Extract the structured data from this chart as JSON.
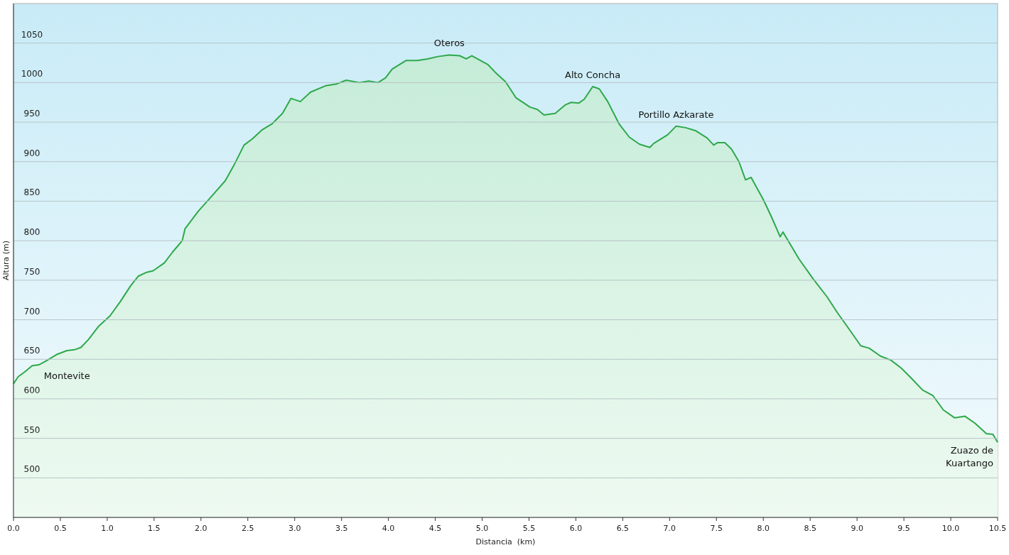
{
  "chart_data": {
    "type": "area",
    "xlabel": "Distancia  (km)",
    "ylabel": "Altura (m)",
    "xlim": [
      0,
      10.5
    ],
    "ylim": [
      450,
      1100
    ],
    "xticks": [
      {
        "value": 0,
        "label": "0.0"
      },
      {
        "value": 0.5,
        "label": "0.5"
      },
      {
        "value": 1,
        "label": "1.0"
      },
      {
        "value": 1.5,
        "label": "1.5"
      },
      {
        "value": 2,
        "label": "2.0"
      },
      {
        "value": 2.5,
        "label": "2.5"
      },
      {
        "value": 3,
        "label": "3.0"
      },
      {
        "value": 3.5,
        "label": "3.5"
      },
      {
        "value": 4,
        "label": "4.0"
      },
      {
        "value": 4.5,
        "label": "4.5"
      },
      {
        "value": 5,
        "label": "5.0"
      },
      {
        "value": 5.5,
        "label": "5.5"
      },
      {
        "value": 6,
        "label": "6.0"
      },
      {
        "value": 6.5,
        "label": "6.5"
      },
      {
        "value": 7,
        "label": "7.0"
      },
      {
        "value": 7.5,
        "label": "7.5"
      },
      {
        "value": 8,
        "label": "8.0"
      },
      {
        "value": 8.5,
        "label": "8.5"
      },
      {
        "value": 9,
        "label": "9.0"
      },
      {
        "value": 9.5,
        "label": "9.5"
      },
      {
        "value": 10,
        "label": "10.0"
      },
      {
        "value": 10.5,
        "label": "10.5"
      }
    ],
    "yticks": [
      500,
      550,
      600,
      650,
      700,
      750,
      800,
      850,
      900,
      950,
      1000,
      1050
    ],
    "grid": "y",
    "series": [
      {
        "color": "#2ea84a",
        "x": [
          0,
          0.05,
          0.12,
          0.2,
          0.27,
          0.35,
          0.46,
          0.57,
          0.65,
          0.72,
          0.8,
          0.91,
          1.03,
          1.14,
          1.25,
          1.33,
          1.42,
          1.49,
          1.61,
          1.7,
          1.8,
          1.83,
          1.97,
          2.12,
          2.26,
          2.35,
          2.46,
          2.55,
          2.65,
          2.76,
          2.87,
          2.96,
          3.06,
          3.17,
          3.33,
          3.44,
          3.55,
          3.69,
          3.79,
          3.89,
          3.97,
          4.04,
          4.19,
          4.31,
          4.42,
          4.53,
          4.65,
          4.76,
          4.83,
          4.89,
          5.06,
          5.14,
          5.25,
          5.36,
          5.51,
          5.59,
          5.66,
          5.78,
          5.89,
          5.95,
          6.03,
          6.09,
          6.18,
          6.25,
          6.34,
          6.46,
          6.57,
          6.68,
          6.79,
          6.83,
          6.98,
          7.07,
          7.17,
          7.28,
          7.4,
          7.47,
          7.51,
          7.59,
          7.66,
          7.74,
          7.81,
          7.87,
          8.0,
          8.08,
          8.18,
          8.21,
          8.38,
          8.53,
          8.68,
          8.79,
          8.91,
          9.04,
          9.13,
          9.25,
          9.36,
          9.47,
          9.58,
          9.7,
          9.81,
          9.92,
          10.04,
          10.15,
          10.26,
          10.38,
          10.45,
          10.5
        ],
        "values": [
          619,
          628,
          634,
          642,
          643,
          648,
          656,
          661,
          662,
          665,
          675,
          692,
          705,
          723,
          743,
          755,
          760,
          762,
          772,
          786,
          800,
          815,
          837,
          857,
          876,
          895,
          921,
          929,
          940,
          948,
          961,
          980,
          976,
          988,
          996,
          998,
          1003,
          1000,
          1002,
          1000,
          1006,
          1017,
          1028,
          1028,
          1030,
          1033,
          1035,
          1034,
          1030,
          1034,
          1023,
          1013,
          1001,
          981,
          969,
          966,
          959,
          961,
          972,
          975,
          974,
          979,
          995,
          992,
          976,
          948,
          931,
          922,
          918,
          923,
          934,
          945,
          943,
          939,
          930,
          921,
          924,
          924,
          916,
          900,
          877,
          880,
          852,
          832,
          805,
          811,
          777,
          752,
          729,
          709,
          689,
          667,
          664,
          654,
          649,
          639,
          626,
          611,
          604,
          586,
          576,
          578,
          569,
          556,
          555,
          545
        ]
      }
    ],
    "annotations": [
      {
        "text": "Montevite",
        "x": 0.57,
        "y": 661
      },
      {
        "text": "Oteros",
        "x": 4.65,
        "y": 1035
      },
      {
        "text": "Alto Concha",
        "x": 6.18,
        "y": 995
      },
      {
        "text": "Portillo Azkarate",
        "x": 7.07,
        "y": 945
      },
      {
        "text": "Zuazo de Kuartango",
        "x": 10.5,
        "y": 545
      }
    ]
  }
}
